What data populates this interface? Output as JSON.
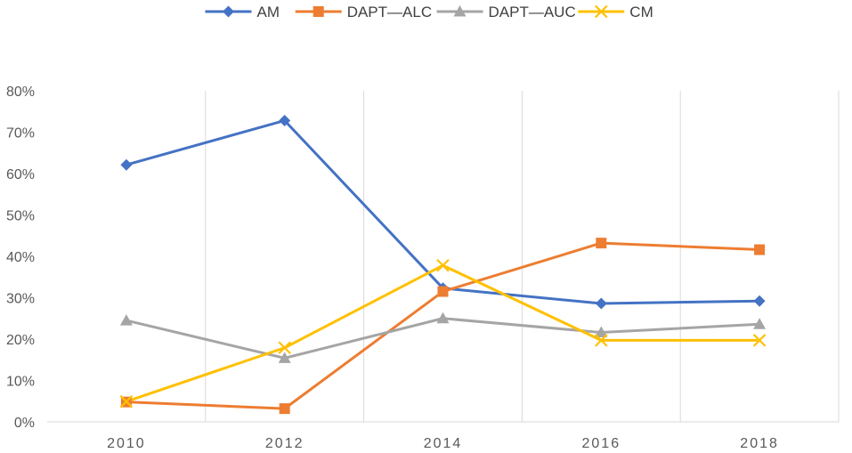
{
  "chart_data": {
    "type": "line",
    "categories": [
      "2010",
      "2012",
      "2014",
      "2016",
      "2018"
    ],
    "series": [
      {
        "name": "AM",
        "color": "#4472C4",
        "marker": "diamond",
        "values": [
          62.1,
          72.8,
          32.3,
          28.6,
          29.2
        ]
      },
      {
        "name": "DAPT—ALC",
        "color": "#ED7D31",
        "marker": "square",
        "values": [
          4.8,
          3.2,
          31.5,
          43.2,
          41.6
        ]
      },
      {
        "name": "DAPT—AUC",
        "color": "#A5A5A5",
        "marker": "triangle",
        "values": [
          24.5,
          15.4,
          25.0,
          21.6,
          23.6
        ]
      },
      {
        "name": "CM",
        "color": "#FFC000",
        "marker": "x",
        "values": [
          4.9,
          17.9,
          37.8,
          19.7,
          19.7
        ]
      }
    ],
    "ylim": [
      0,
      80
    ],
    "yticks": [
      "0%",
      "10%",
      "20%",
      "30%",
      "40%",
      "50%",
      "60%",
      "70%",
      "80%"
    ],
    "ylabel": "",
    "xlabel": "",
    "title": "",
    "grid": "vertical",
    "legend_position": "top"
  }
}
